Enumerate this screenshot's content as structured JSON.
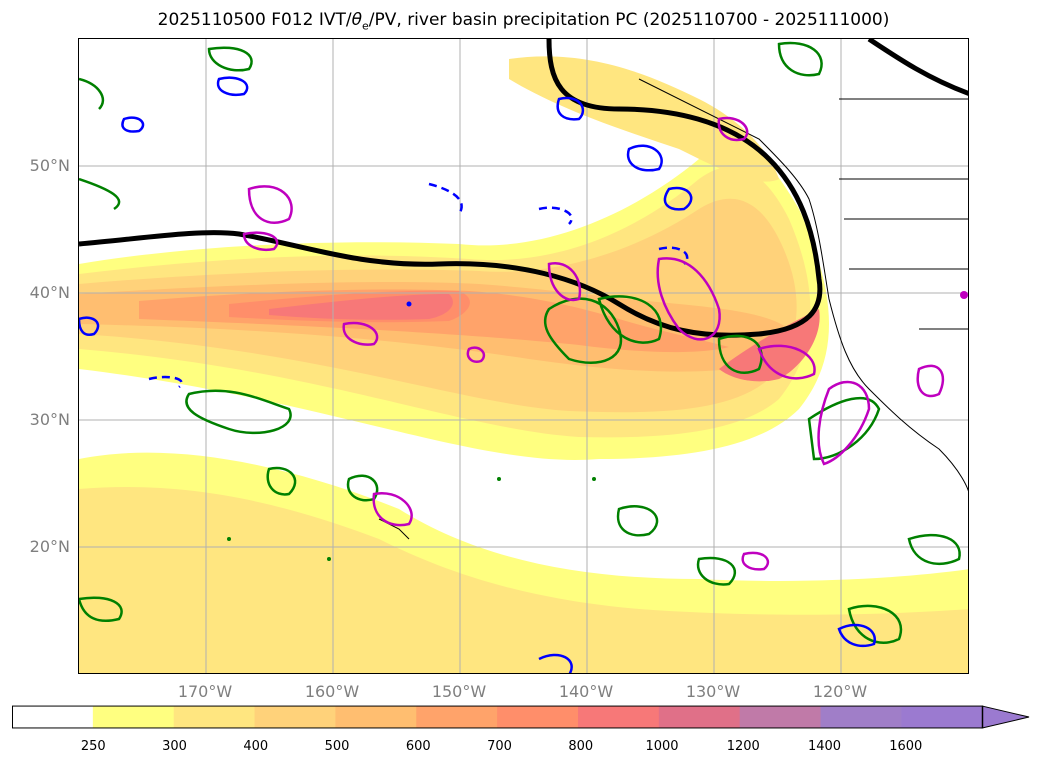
{
  "title_prefix": "2025110500 F012 IVT/",
  "title_theta": "θ",
  "title_sub": "e",
  "title_suffix": "/PV, river basin precipitation PC (2025110700 - 2025111000)",
  "lat_labels": [
    "50°N",
    "40°N",
    "30°N",
    "20°N"
  ],
  "lon_labels": [
    "170°W",
    "160°W",
    "150°W",
    "140°W",
    "130°W",
    "120°W"
  ],
  "colorbar": {
    "ticks": [
      "250",
      "300",
      "400",
      "500",
      "600",
      "700",
      "800",
      "1000",
      "1200",
      "1400",
      "1600"
    ],
    "colors": [
      "#ffffff",
      "#ffff80",
      "#ffe680",
      "#ffd27a",
      "#ffbe70",
      "#ffa36a",
      "#ff8e6a",
      "#f77878",
      "#e07088",
      "#c07aa8",
      "#a07ec8",
      "#9b7ad0"
    ]
  },
  "contours": {
    "ivt_color": "#ff9966",
    "theta_e_color": "#000000",
    "pv_positive_color": "#008000",
    "pv_negative_color": "#0000ff",
    "precip_color": "#bf00bf"
  }
}
